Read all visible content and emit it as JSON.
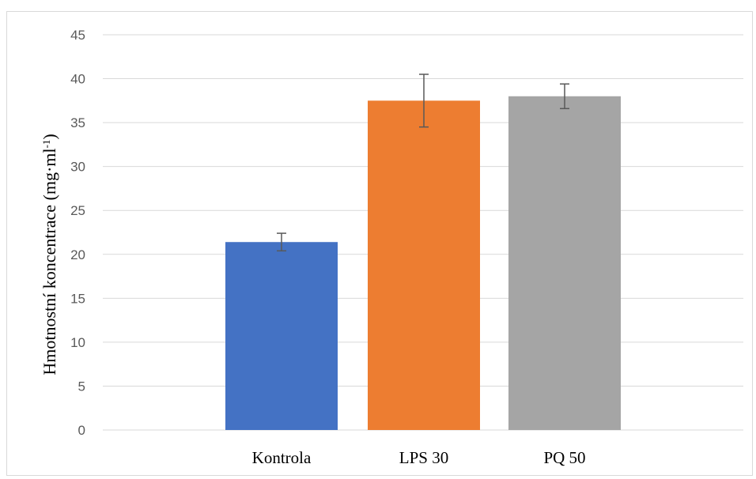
{
  "chart_data": {
    "type": "bar",
    "categories": [
      "Kontrola",
      "LPS 30",
      "PQ 50"
    ],
    "values": [
      21.4,
      37.5,
      38.0
    ],
    "errors": [
      1.0,
      3.0,
      1.4
    ],
    "colors": [
      "#4472C4",
      "#ED7D31",
      "#A5A5A5"
    ],
    "ylabel": {
      "prefix": "Hmotnostní koncentrace (mg·ml",
      "superscript": "-1",
      "suffix": ")"
    },
    "ylim": [
      0,
      45
    ],
    "yticks": [
      "0",
      "5",
      "10",
      "15",
      "20",
      "25",
      "30",
      "35",
      "40",
      "45"
    ],
    "grid": true,
    "gridColor": "#d9d9d9",
    "errorBarColor": "#595959"
  }
}
